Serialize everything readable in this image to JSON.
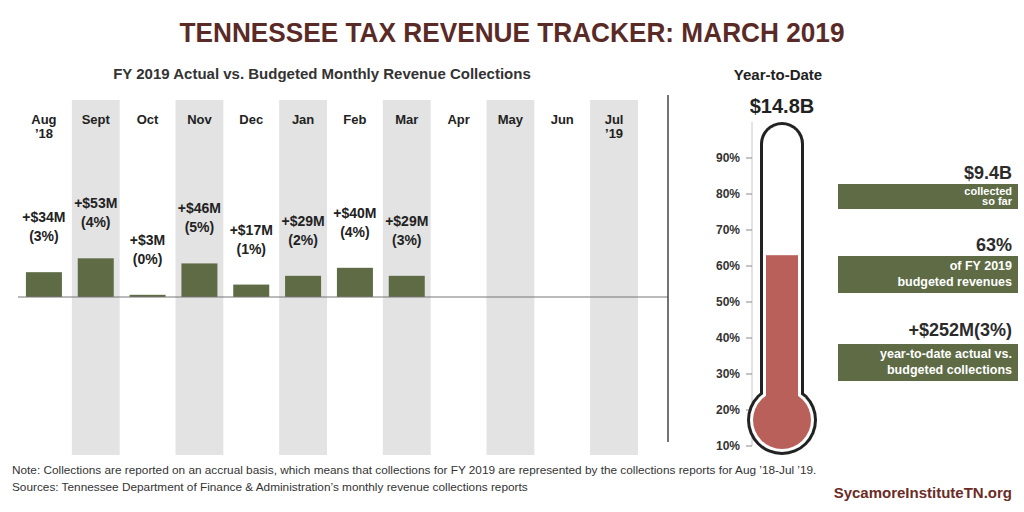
{
  "title": "TENNESSEE TAX REVENUE TRACKER: MARCH 2019",
  "note": "Note: Collections are reported on an accrual basis, which means that collections for FY 2019 are represented by the collections reports for Aug ’18-Jul ’19.",
  "source": "Sources: Tennessee Department of Finance & Administration’s monthly revenue collections reports",
  "website": "SycamoreInstituteTN.org",
  "chart_data": [
    {
      "type": "bar",
      "title": "FY 2019 Actual vs. Budgeted Monthly Revenue Collections",
      "categories": [
        "Aug ’18",
        "Sept",
        "Oct",
        "Nov",
        "Dec",
        "Jan",
        "Feb",
        "Mar",
        "Apr",
        "May",
        "Jun",
        "Jul ’19"
      ],
      "values": [
        34,
        53,
        3,
        46,
        17,
        29,
        40,
        29,
        null,
        null,
        null,
        null
      ],
      "value_labels": [
        "+$34M",
        "+$53M",
        "+$3M",
        "+$46M",
        "+$17M",
        "+$29M",
        "+$40M",
        "+$29M",
        null,
        null,
        null,
        null
      ],
      "percents": [
        3,
        4,
        0,
        5,
        1,
        2,
        4,
        3,
        null,
        null,
        null,
        null
      ],
      "percent_labels": [
        "(3%)",
        "(4%)",
        "(0%)",
        "(5%)",
        "(1%)",
        "(2%)",
        "(4%)",
        "(3%)",
        null,
        null,
        null,
        null
      ],
      "color": "#5e6b45",
      "ylim": [
        0,
        100
      ],
      "data_labels": true,
      "tick_labels": "x",
      "grid": false
    },
    {
      "type": "thermometer",
      "title": "Year-to-Date",
      "total": {
        "value": 14.8,
        "label": "$14.8B"
      },
      "color": "#b9605a",
      "ylim": [
        10,
        100
      ],
      "yticks": [
        {
          "value": 10,
          "label": "10%"
        },
        {
          "value": 20,
          "label": "20%"
        },
        {
          "value": 30,
          "label": "30%"
        },
        {
          "value": 40,
          "label": "40%"
        },
        {
          "value": 50,
          "label": "50%"
        },
        {
          "value": 60,
          "label": "60%"
        },
        {
          "value": 70,
          "label": "70%"
        },
        {
          "value": 80,
          "label": "80%"
        },
        {
          "value": 90,
          "label": "90%"
        }
      ],
      "stats": [
        {
          "value": 9.4,
          "label": "$9.4B",
          "text": [
            "collected",
            "so far"
          ]
        },
        {
          "value": 63,
          "label": "63%",
          "text": [
            "of FY 2019",
            "budgeted revenues"
          ]
        },
        {
          "value": 252,
          "label": "+$252M",
          "percent": 3,
          "percent_label": "(3%)",
          "text": [
            "year-to-date actual vs.",
            "budgeted collections"
          ]
        }
      ]
    }
  ]
}
